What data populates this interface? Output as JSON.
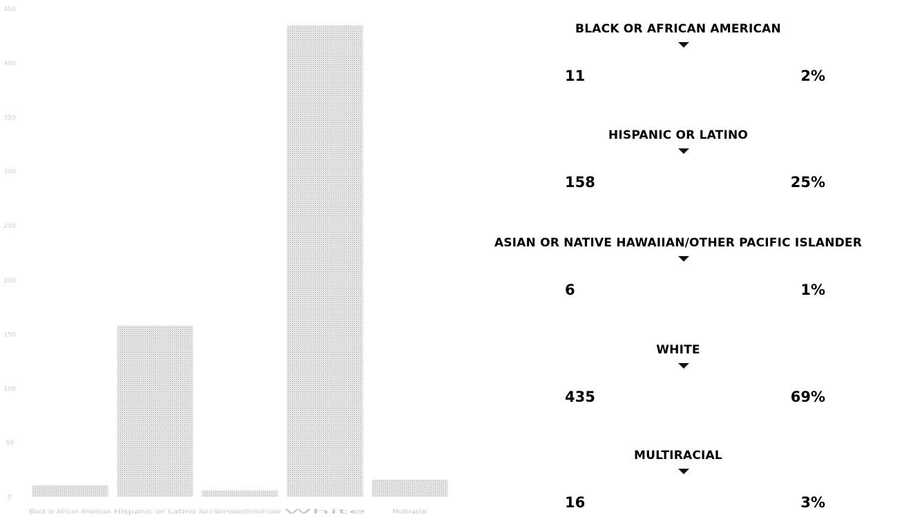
{
  "chart_data": {
    "type": "bar",
    "categories": [
      "Black or African American",
      "Hispanic or Latino",
      "Asian or Native Hawaiian/Other Pacific Islander",
      "White",
      "Multiracial"
    ],
    "values": [
      11,
      158,
      6,
      435,
      16
    ],
    "ylim": [
      0,
      450
    ],
    "yticks": [
      0,
      50,
      100,
      150,
      200,
      250,
      300,
      350,
      400,
      450
    ],
    "grid": false,
    "bar_color": "#d6d6d6"
  },
  "groups": [
    {
      "label": "BLACK OR AFRICAN AMERICAN",
      "count": "11",
      "percent": "2%"
    },
    {
      "label": "HISPANIC OR LATINO",
      "count": "158",
      "percent": "25%"
    },
    {
      "label": "ASIAN OR NATIVE HAWAIIAN/OTHER PACIFIC ISLANDER",
      "count": "6",
      "percent": "1%"
    },
    {
      "label": "WHITE",
      "count": "435",
      "percent": "69%"
    },
    {
      "label": "MULTIRACIAL",
      "count": "16",
      "percent": "3%"
    }
  ]
}
